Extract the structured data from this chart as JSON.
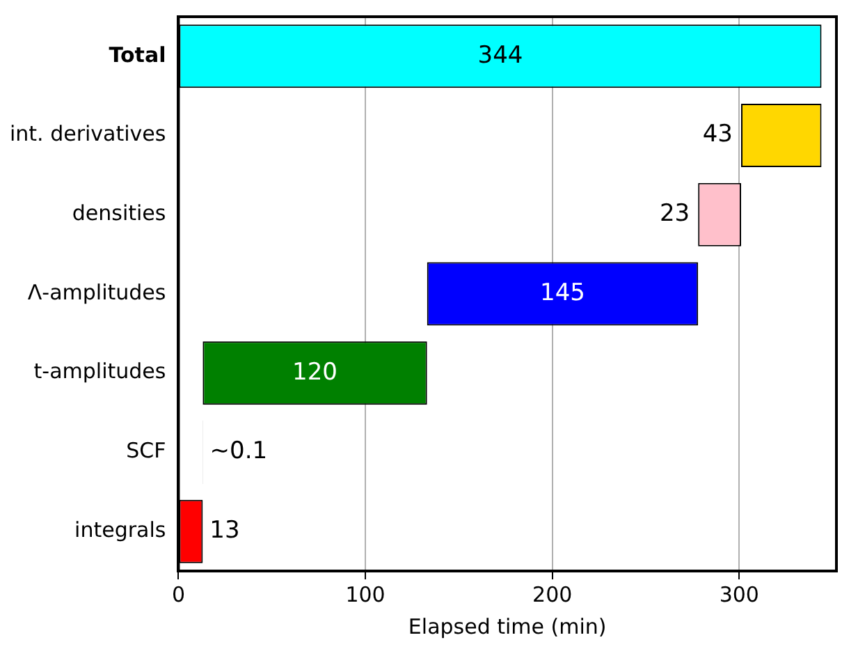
{
  "chart_data": {
    "type": "bar",
    "orientation": "horizontal",
    "xlabel": "Elapsed time (min)",
    "categories": [
      "Total",
      "int. derivatives",
      "densities",
      "Λ-amplitudes",
      "t-amplitudes",
      "SCF",
      "integrals"
    ],
    "values": [
      344,
      43,
      23,
      145,
      120,
      0.1,
      13
    ],
    "base": [
      0,
      301,
      278,
      133,
      13,
      13,
      0
    ],
    "colors": [
      "#00ffff",
      "#ffd700",
      "#ffc0cb",
      "#0000ff",
      "#008000",
      "#000000",
      "#ff0000"
    ],
    "value_labels": [
      "344",
      "43",
      "23",
      "145",
      "120",
      "~0.1",
      "13"
    ],
    "xlim": [
      0,
      352
    ],
    "xticks": [
      0,
      100,
      200,
      300
    ],
    "grid": "x",
    "legend": false
  }
}
